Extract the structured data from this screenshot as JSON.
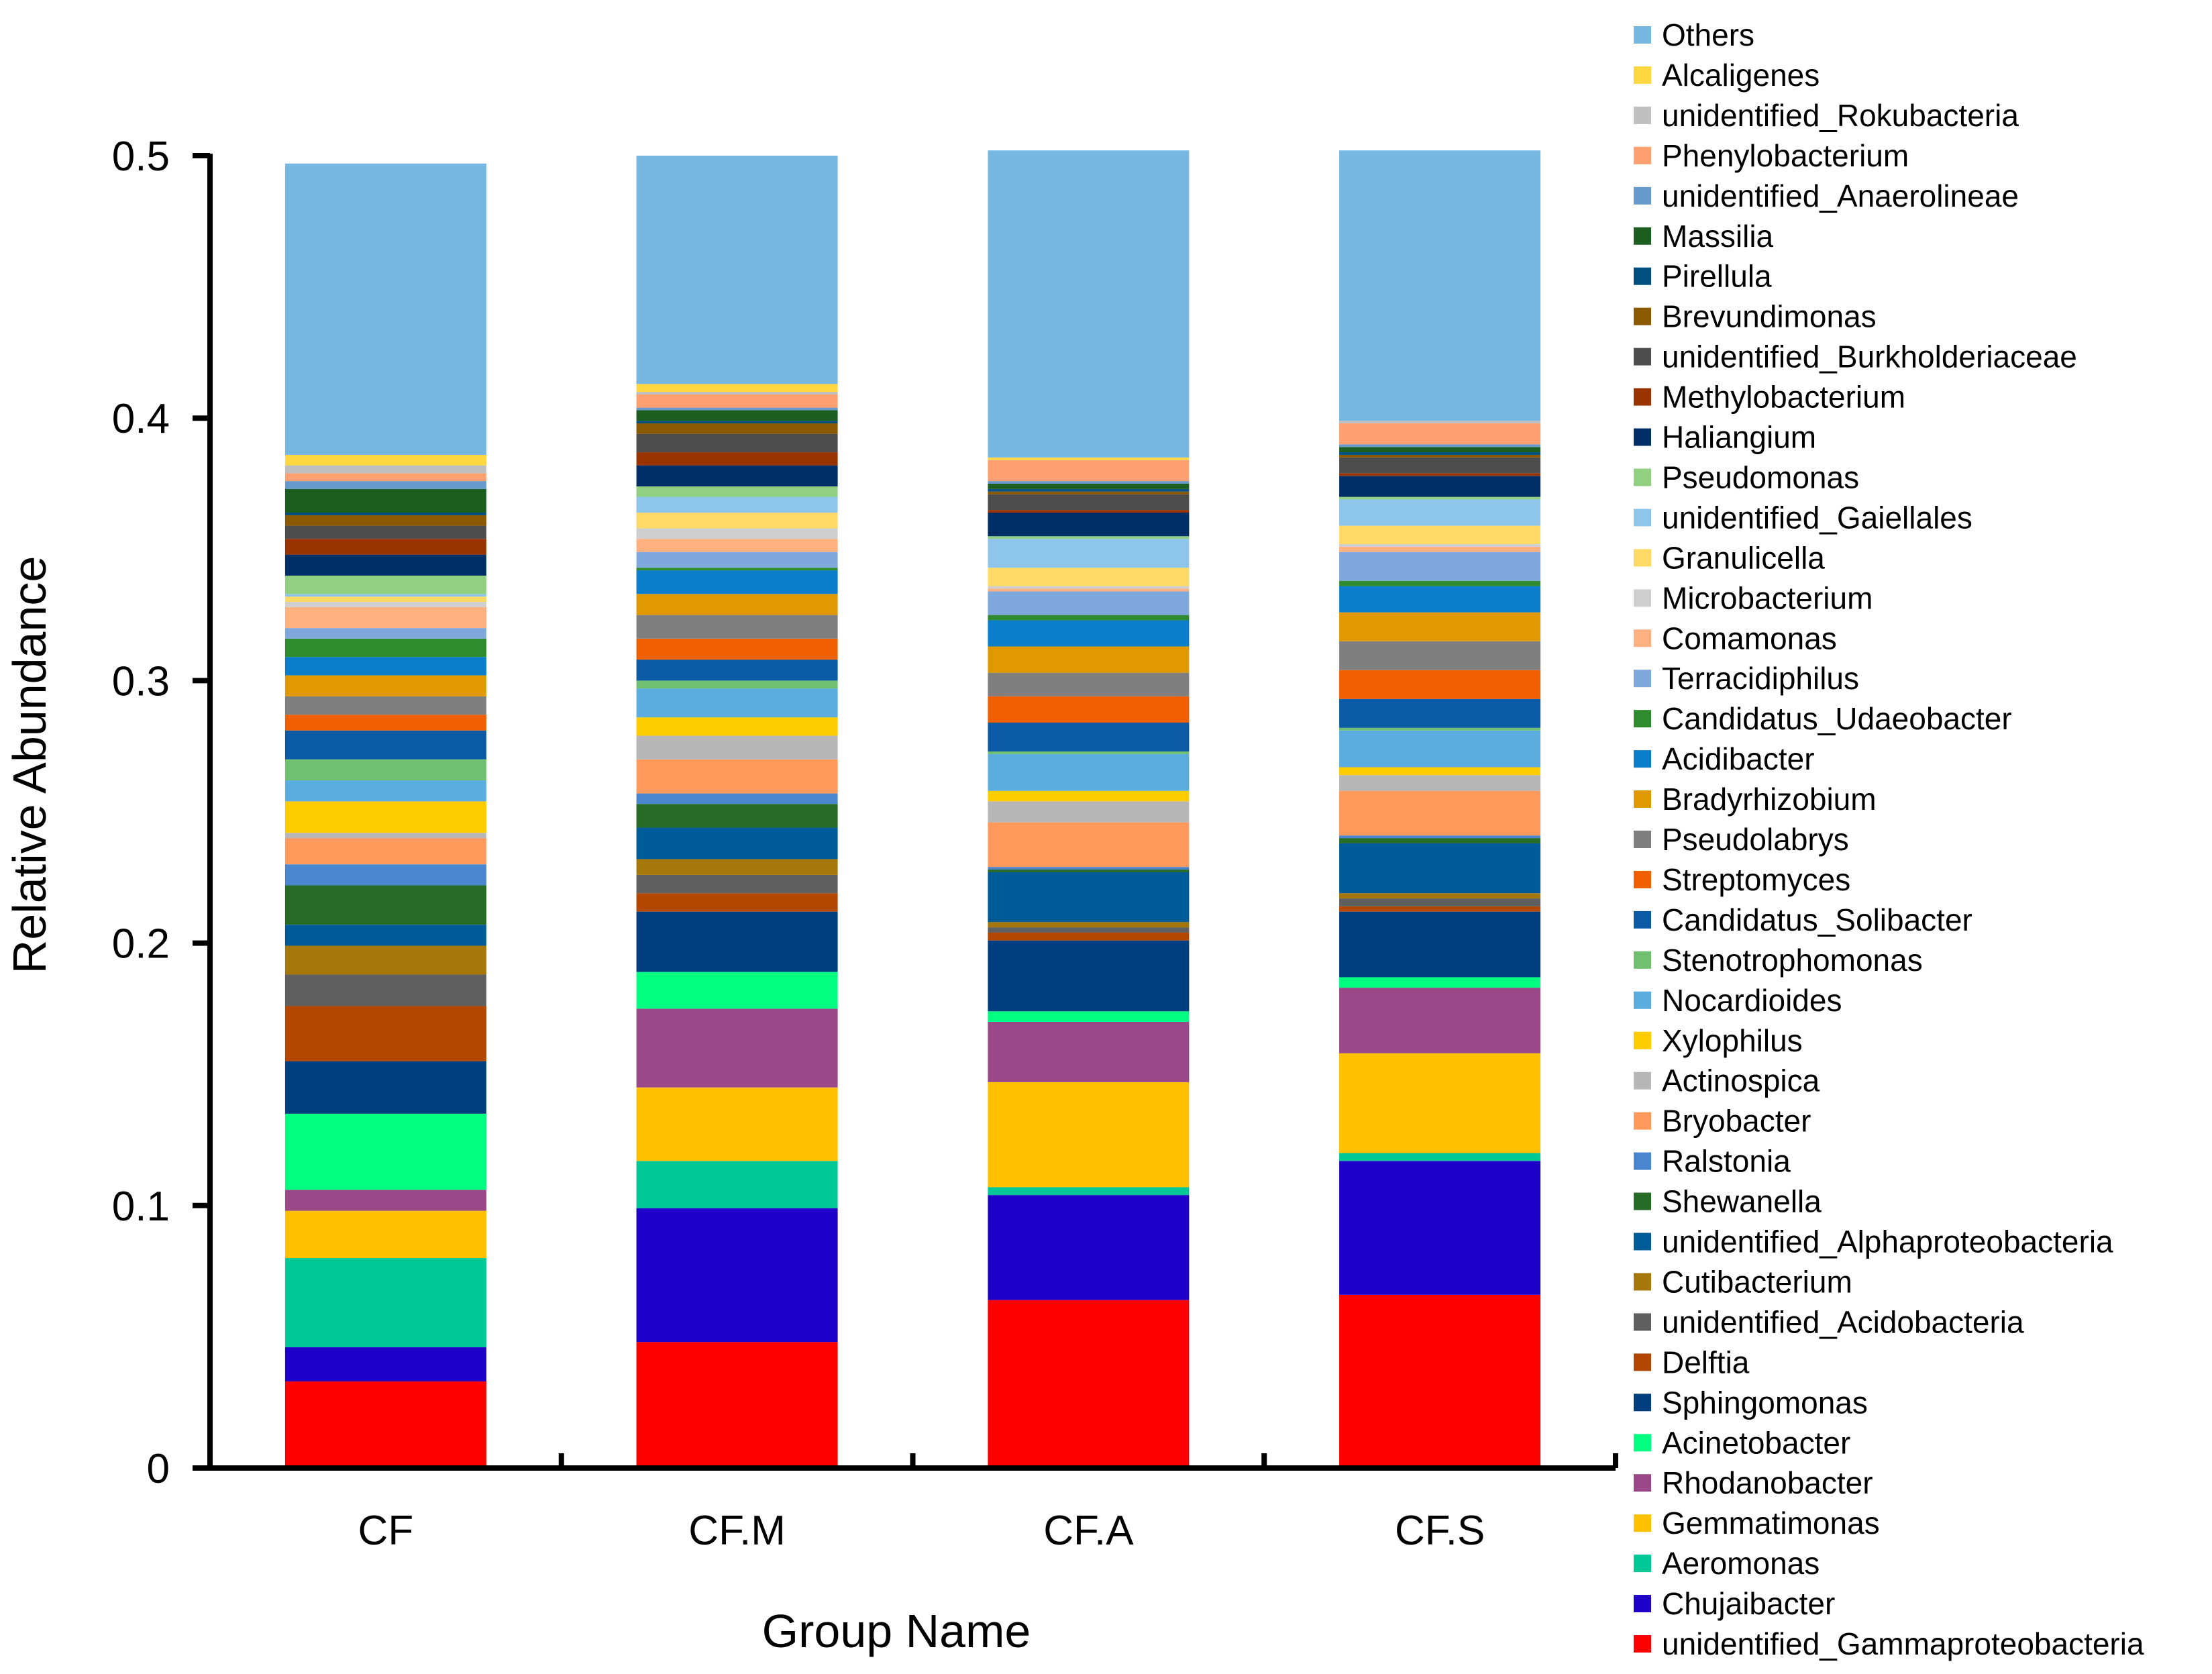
{
  "chart_data": {
    "type": "bar",
    "stacked": true,
    "xlabel": "Group Name",
    "ylabel": "Relative Abundance",
    "ylim": [
      0,
      0.5
    ],
    "yticks": [
      0,
      0.1,
      0.2,
      0.3,
      0.4,
      0.5
    ],
    "ytick_labels": [
      "0",
      "0.1",
      "0.2",
      "0.3",
      "0.4",
      "0.5"
    ],
    "legend_position": "right",
    "categories": [
      "CF",
      "CF.M",
      "CF.A",
      "CF.S"
    ],
    "series": [
      {
        "name": "unidentified_Gammaproteobacteria",
        "color": "#FF0000",
        "values": [
          0.033,
          0.048,
          0.064,
          0.066
        ]
      },
      {
        "name": "Chujaibacter",
        "color": "#1E00C8",
        "values": [
          0.013,
          0.051,
          0.04,
          0.051
        ]
      },
      {
        "name": "Aeromonas",
        "color": "#00C896",
        "values": [
          0.034,
          0.018,
          0.003,
          0.003
        ]
      },
      {
        "name": "Gemmatimonas",
        "color": "#FFC000",
        "values": [
          0.018,
          0.028,
          0.04,
          0.038
        ]
      },
      {
        "name": "Rhodanobacter",
        "color": "#9B4889",
        "values": [
          0.008,
          0.03,
          0.023,
          0.025
        ]
      },
      {
        "name": "Acinetobacter",
        "color": "#00FF80",
        "values": [
          0.029,
          0.014,
          0.004,
          0.004
        ]
      },
      {
        "name": "Sphingomonas",
        "color": "#003F7F",
        "values": [
          0.02,
          0.023,
          0.027,
          0.025
        ]
      },
      {
        "name": "Delftia",
        "color": "#B34700",
        "values": [
          0.021,
          0.007,
          0.003,
          0.002
        ]
      },
      {
        "name": "unidentified_Acidobacteria",
        "color": "#5F5F5F",
        "values": [
          0.012,
          0.007,
          0.002,
          0.003
        ]
      },
      {
        "name": "Cutibacterium",
        "color": "#A6770A",
        "values": [
          0.011,
          0.006,
          0.002,
          0.002
        ]
      },
      {
        "name": "unidentified_Alphaproteobacteria",
        "color": "#005C99",
        "values": [
          0.008,
          0.012,
          0.019,
          0.019
        ]
      },
      {
        "name": "Shewanella",
        "color": "#266B26",
        "values": [
          0.015,
          0.009,
          0.001,
          0.002
        ]
      },
      {
        "name": "Ralstonia",
        "color": "#4A86CF",
        "values": [
          0.008,
          0.004,
          0.001,
          0.001
        ]
      },
      {
        "name": "Bryobacter",
        "color": "#FF9A5C",
        "values": [
          0.01,
          0.013,
          0.017,
          0.017
        ]
      },
      {
        "name": "Actinospica",
        "color": "#B7B7B7",
        "values": [
          0.002,
          0.009,
          0.008,
          0.006
        ]
      },
      {
        "name": "Xylophilus",
        "color": "#FFCC00",
        "values": [
          0.012,
          0.007,
          0.004,
          0.003
        ]
      },
      {
        "name": "Nocardioides",
        "color": "#5BADE0",
        "values": [
          0.008,
          0.011,
          0.014,
          0.014
        ]
      },
      {
        "name": "Stenotrophomonas",
        "color": "#70C070",
        "values": [
          0.008,
          0.003,
          0.001,
          0.001
        ]
      },
      {
        "name": "Candidatus_Solibacter",
        "color": "#0B5AA5",
        "values": [
          0.011,
          0.008,
          0.011,
          0.011
        ]
      },
      {
        "name": "Streptomyces",
        "color": "#F05F00",
        "values": [
          0.006,
          0.008,
          0.01,
          0.011
        ]
      },
      {
        "name": "Pseudolabrys",
        "color": "#7F7F7F",
        "values": [
          0.007,
          0.009,
          0.009,
          0.011
        ]
      },
      {
        "name": "Bradyrhizobium",
        "color": "#E09A00",
        "values": [
          0.008,
          0.008,
          0.01,
          0.011
        ]
      },
      {
        "name": "Acidibacter",
        "color": "#0A7ECA",
        "values": [
          0.007,
          0.009,
          0.01,
          0.01
        ]
      },
      {
        "name": "Candidatus_Udaeobacter",
        "color": "#2E8B2E",
        "values": [
          0.007,
          0.001,
          0.002,
          0.002
        ]
      },
      {
        "name": "Terracidiphilus",
        "color": "#7FA8DC",
        "values": [
          0.004,
          0.006,
          0.009,
          0.011
        ]
      },
      {
        "name": "Comamonas",
        "color": "#FFB07F",
        "values": [
          0.008,
          0.005,
          0.001,
          0.002
        ]
      },
      {
        "name": "Microbacterium",
        "color": "#CFCFCF",
        "values": [
          0.002,
          0.004,
          0.001,
          0.001
        ]
      },
      {
        "name": "Granulicella",
        "color": "#FFD966",
        "values": [
          0.002,
          0.006,
          0.007,
          0.007
        ]
      },
      {
        "name": "unidentified_Gaiellales",
        "color": "#8EC5EA",
        "values": [
          0.001,
          0.006,
          0.011,
          0.01
        ]
      },
      {
        "name": "Pseudomonas",
        "color": "#90D080",
        "values": [
          0.007,
          0.004,
          0.001,
          0.001
        ]
      },
      {
        "name": "Haliangium",
        "color": "#002E66",
        "values": [
          0.008,
          0.008,
          0.009,
          0.008
        ]
      },
      {
        "name": "Methylobacterium",
        "color": "#993300",
        "values": [
          0.006,
          0.005,
          0.001,
          0.001
        ]
      },
      {
        "name": "unidentified_Burkholderiaceae",
        "color": "#4D4D4D",
        "values": [
          0.005,
          0.007,
          0.006,
          0.006
        ]
      },
      {
        "name": "Brevundimonas",
        "color": "#8B5A00",
        "values": [
          0.004,
          0.004,
          0.001,
          0.001
        ]
      },
      {
        "name": "Pirellula",
        "color": "#004F7F",
        "values": [
          0.001,
          0.001,
          0.001,
          0.001
        ]
      },
      {
        "name": "Massilia",
        "color": "#1B5E20",
        "values": [
          0.009,
          0.004,
          0.002,
          0.002
        ]
      },
      {
        "name": "unidentified_Anaerolineae",
        "color": "#6699CC",
        "values": [
          0.003,
          0.001,
          0.001,
          0.001
        ]
      },
      {
        "name": "Phenylobacterium",
        "color": "#FFA070",
        "values": [
          0.003,
          0.005,
          0.008,
          0.008
        ]
      },
      {
        "name": "unidentified_Rokubacteria",
        "color": "#BFBFBF",
        "values": [
          0.003,
          0.001,
          0.0,
          0.001
        ]
      },
      {
        "name": "Alcaligenes",
        "color": "#FFD740",
        "values": [
          0.004,
          0.003,
          0.001,
          0.0
        ]
      },
      {
        "name": "Others",
        "color": "#76B8E2",
        "values": [
          0.111,
          0.087,
          0.117,
          0.103
        ]
      }
    ]
  }
}
